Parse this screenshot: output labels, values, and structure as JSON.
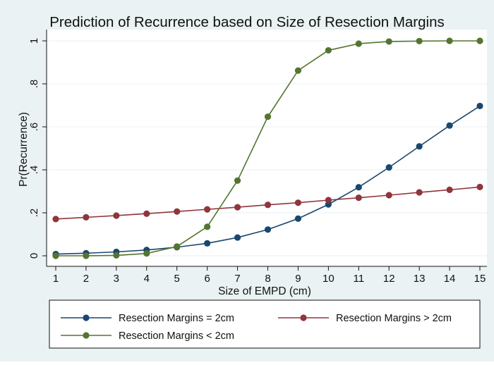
{
  "chart_data": {
    "type": "line",
    "title": "Prediction of Recurrence based on Size of Resection Margins",
    "xlabel": "Size of EMPD (cm)",
    "ylabel": "Pr(Recurrence)",
    "x": [
      1,
      2,
      3,
      4,
      5,
      6,
      7,
      8,
      9,
      10,
      11,
      12,
      13,
      14,
      15
    ],
    "xticks": [
      "1",
      "2",
      "3",
      "4",
      "5",
      "6",
      "7",
      "8",
      "9",
      "10",
      "11",
      "12",
      "13",
      "14",
      "15"
    ],
    "yticks": [
      {
        "value": 0,
        "label": "0"
      },
      {
        "value": 0.2,
        "label": ".2"
      },
      {
        "value": 0.4,
        "label": ".4"
      },
      {
        "value": 0.6,
        "label": ".6"
      },
      {
        "value": 0.8,
        "label": ".8"
      },
      {
        "value": 1,
        "label": "1"
      }
    ],
    "xlim": [
      1,
      15
    ],
    "ylim": [
      0,
      1
    ],
    "grid": "horizontal",
    "legend_position": "bottom",
    "series": [
      {
        "name": "Resection Margins = 2cm",
        "color": "#1a476f",
        "values": [
          0.008,
          0.012,
          0.018,
          0.027,
          0.04,
          0.058,
          0.085,
          0.122,
          0.173,
          0.239,
          0.319,
          0.411,
          0.509,
          0.606,
          0.697
        ]
      },
      {
        "name": "Resection Margins > 2cm",
        "color": "#90353b",
        "values": [
          0.171,
          0.179,
          0.187,
          0.196,
          0.206,
          0.216,
          0.226,
          0.237,
          0.247,
          0.259,
          0.27,
          0.282,
          0.295,
          0.307,
          0.32
        ]
      },
      {
        "name": "Resection Margins < 2cm",
        "color": "#55752f",
        "values": [
          0.0,
          0.0,
          0.002,
          0.011,
          0.043,
          0.135,
          0.35,
          0.647,
          0.862,
          0.956,
          0.987,
          0.997,
          0.999,
          1.0,
          1.0
        ]
      }
    ]
  }
}
